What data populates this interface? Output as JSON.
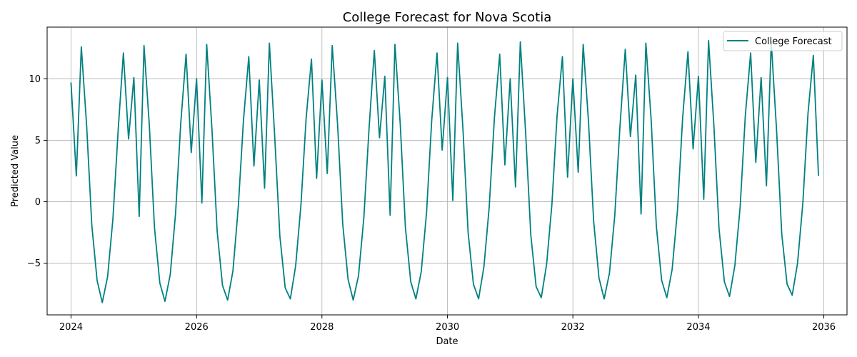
{
  "chart_data": {
    "type": "line",
    "title": "College Forecast for Nova Scotia",
    "xlabel": "Date",
    "ylabel": "Predicted Value",
    "xlim": [
      "2023-08-15",
      "2036-05-15"
    ],
    "ylim": [
      -9.2,
      14.2
    ],
    "grid": true,
    "legend_position": "top-right",
    "x_ticks": [
      "2024",
      "2026",
      "2028",
      "2030",
      "2032",
      "2034",
      "2036"
    ],
    "y_ticks": [
      -5,
      0,
      5,
      10
    ],
    "series": [
      {
        "name": "College Forecast",
        "color": "#008080",
        "x": [
          "2024-01",
          "2024-02",
          "2024-03",
          "2024-04",
          "2024-05",
          "2024-06",
          "2024-07",
          "2024-08",
          "2024-09",
          "2024-10",
          "2024-11",
          "2024-12",
          "2025-01",
          "2025-02",
          "2025-03",
          "2025-04",
          "2025-05",
          "2025-06",
          "2025-07",
          "2025-08",
          "2025-09",
          "2025-10",
          "2025-11",
          "2025-12",
          "2026-01",
          "2026-02",
          "2026-03",
          "2026-04",
          "2026-05",
          "2026-06",
          "2026-07",
          "2026-08",
          "2026-09",
          "2026-10",
          "2026-11",
          "2026-12",
          "2027-01",
          "2027-02",
          "2027-03",
          "2027-04",
          "2027-05",
          "2027-06",
          "2027-07",
          "2027-08",
          "2027-09",
          "2027-10",
          "2027-11",
          "2027-12",
          "2028-01",
          "2028-02",
          "2028-03",
          "2028-04",
          "2028-05",
          "2028-06",
          "2028-07",
          "2028-08",
          "2028-09",
          "2028-10",
          "2028-11",
          "2028-12",
          "2029-01",
          "2029-02",
          "2029-03",
          "2029-04",
          "2029-05",
          "2029-06",
          "2029-07",
          "2029-08",
          "2029-09",
          "2029-10",
          "2029-11",
          "2029-12",
          "2030-01",
          "2030-02",
          "2030-03",
          "2030-04",
          "2030-05",
          "2030-06",
          "2030-07",
          "2030-08",
          "2030-09",
          "2030-10",
          "2030-11",
          "2030-12",
          "2031-01",
          "2031-02",
          "2031-03",
          "2031-04",
          "2031-05",
          "2031-06",
          "2031-07",
          "2031-08",
          "2031-09",
          "2031-10",
          "2031-11",
          "2031-12",
          "2032-01",
          "2032-02",
          "2032-03",
          "2032-04",
          "2032-05",
          "2032-06",
          "2032-07",
          "2032-08",
          "2032-09",
          "2032-10",
          "2032-11",
          "2032-12",
          "2033-01",
          "2033-02",
          "2033-03",
          "2033-04",
          "2033-05",
          "2033-06",
          "2033-07",
          "2033-08",
          "2033-09",
          "2033-10",
          "2033-11",
          "2033-12",
          "2034-01",
          "2034-02",
          "2034-03",
          "2034-04",
          "2034-05",
          "2034-06",
          "2034-07",
          "2034-08",
          "2034-09",
          "2034-10",
          "2034-11",
          "2034-12",
          "2035-01",
          "2035-02",
          "2035-03",
          "2035-04",
          "2035-05",
          "2035-06",
          "2035-07",
          "2035-08",
          "2035-09",
          "2035-10",
          "2035-11",
          "2035-12"
        ],
        "values": [
          9.7,
          2.1,
          12.6,
          6.2,
          -1.9,
          -6.4,
          -8.2,
          -6.1,
          -1.4,
          5.7,
          12.1,
          5.1,
          10.1,
          -1.2,
          12.7,
          6.2,
          -2.1,
          -6.6,
          -8.1,
          -5.9,
          -0.9,
          6.4,
          12.0,
          4.0,
          10.0,
          -0.1,
          12.8,
          5.8,
          -2.4,
          -6.8,
          -8.0,
          -5.6,
          -0.4,
          6.6,
          11.8,
          2.9,
          9.9,
          1.1,
          12.9,
          5.3,
          -2.8,
          -7.0,
          -7.9,
          -5.2,
          -0.2,
          6.8,
          11.6,
          1.9,
          9.9,
          2.3,
          12.7,
          6.3,
          -1.8,
          -6.3,
          -8.0,
          -6.0,
          -1.3,
          5.9,
          12.3,
          5.2,
          10.2,
          -1.1,
          12.8,
          6.3,
          -2.1,
          -6.5,
          -7.9,
          -5.7,
          -0.9,
          6.6,
          12.1,
          4.2,
          10.1,
          0.1,
          12.9,
          5.9,
          -2.5,
          -6.7,
          -7.9,
          -5.3,
          -0.4,
          6.8,
          12.0,
          3.0,
          10.0,
          1.2,
          13.0,
          5.6,
          -2.7,
          -6.9,
          -7.8,
          -5.1,
          -0.2,
          7.0,
          11.8,
          2.0,
          10.0,
          2.4,
          12.8,
          6.5,
          -1.6,
          -6.2,
          -7.9,
          -5.8,
          -1.1,
          6.1,
          12.4,
          5.3,
          10.3,
          -1.0,
          12.9,
          6.6,
          -2.0,
          -6.4,
          -7.8,
          -5.5,
          -0.7,
          6.8,
          12.2,
          4.3,
          10.2,
          0.2,
          13.1,
          6.2,
          -2.2,
          -6.5,
          -7.7,
          -5.2,
          -0.4,
          7.0,
          12.1,
          3.2,
          10.1,
          1.3,
          13.0,
          5.8,
          -2.6,
          -6.7,
          -7.6,
          -5.0,
          -0.1,
          7.2,
          11.9,
          2.1
        ]
      }
    ]
  }
}
